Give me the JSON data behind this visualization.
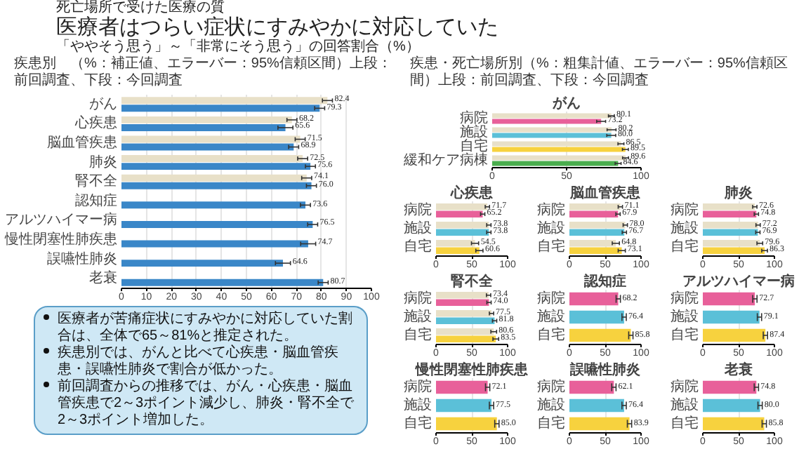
{
  "chart_data": [
    {
      "type": "other",
      "annotations": [
        "死亡場所で受けた医療の質"
      ],
      "title": "医療者はつらい症状にすみやかに対応していた",
      "subtitle": "「ややそう思う」～「非常にそう思う」の回答割合（%）"
    },
    {
      "type": "bar",
      "orientation": "horizontal",
      "title": "疾患別　（%：補正値、エラーバー：95%信頼区間）上段：前回調査、下段：今回調査",
      "categories": [
        "がん",
        "心疾患",
        "脳血管疾患",
        "肺炎",
        "腎不全",
        "認知症",
        "アルツハイマー病",
        "慢性閉塞性肺疾患",
        "誤嚥性肺炎",
        "老衰"
      ],
      "series": [
        {
          "color": "#e8e0c8",
          "values": [
            82.4,
            68.2,
            71.5,
            72.5,
            74.1,
            null,
            null,
            null,
            null,
            null
          ],
          "value_labels": [
            "82.4",
            "68.2",
            "71.5",
            "72.5",
            "74.1",
            null,
            null,
            null,
            null,
            null
          ],
          "errors": [
            2,
            2,
            2,
            2,
            2,
            null,
            null,
            null,
            null,
            null
          ]
        },
        {
          "color": "#3a87c8",
          "values": [
            79.3,
            65.6,
            68.9,
            75.6,
            76.0,
            73.6,
            76.5,
            74.7,
            64.6,
            80.7
          ],
          "value_labels": [
            "79.3",
            "65.6",
            "68.9",
            "75.6",
            "76.0",
            "73.6",
            "76.5",
            "74.7",
            "64.6",
            "80.7"
          ],
          "errors": [
            2,
            3,
            2,
            2,
            2,
            2,
            2,
            3,
            3,
            2
          ]
        }
      ],
      "xlim": [
        0,
        100
      ],
      "xticks": [
        0,
        10,
        20,
        30,
        40,
        50,
        60,
        70,
        80,
        90,
        100
      ],
      "grid": "x",
      "data_labels": true
    },
    {
      "type": "other",
      "annotations": [
        "医療者が苦痛症状にすみやかに対応していた割合は、全体で65～81%と推定された。",
        "疾患別では、がんと比べて心疾患・脳血管疾患・誤嚥性肺炎で割合が低かった。",
        "前回調査からの推移では、がん・心疾患・脳血管疾患で2～3ポイント減少し、肺炎・腎不全で2～3ポイント増加した。"
      ]
    },
    {
      "type": "other",
      "title": "疾患・死亡場所別（%：粗集計値、エラーバー：95%信頼区間）上段：前回調査、下段：今回調査"
    },
    {
      "type": "bar",
      "orientation": "horizontal",
      "title": "がん",
      "categories": [
        "病院",
        "施設",
        "自宅",
        "緩和ケア病棟"
      ],
      "series": [
        {
          "color": "#e8e0c8",
          "values": [
            80.1,
            80.2,
            86.5,
            89.6
          ],
          "value_labels": [
            "80.1",
            "80.2",
            "86.5",
            "89.6"
          ],
          "errors": [
            2,
            3,
            2,
            2
          ]
        },
        {
          "colors": [
            "#e8609a",
            "#5bc0d8",
            "#f7d23e",
            "#4aae4e"
          ],
          "values": [
            73.2,
            80.0,
            89.5,
            84.6
          ],
          "value_labels": [
            "73.2",
            "80.0",
            "89.5",
            "84.6"
          ],
          "errors": [
            3,
            3,
            2,
            2
          ]
        }
      ],
      "xlim": [
        0,
        100
      ],
      "xticks": [
        0,
        50,
        100
      ],
      "grid": "x",
      "data_labels": true
    },
    {
      "type": "bar",
      "orientation": "horizontal",
      "title": "心疾患",
      "categories": [
        "病院",
        "施設",
        "自宅"
      ],
      "series": [
        {
          "color": "#e8e0c8",
          "values": [
            71.7,
            73.8,
            54.5
          ],
          "value_labels": [
            "71.7",
            "73.8",
            "54.5"
          ],
          "errors": [
            3,
            3,
            5
          ]
        },
        {
          "colors": [
            "#e8609a",
            "#5bc0d8",
            "#f7d23e"
          ],
          "values": [
            65.2,
            73.8,
            60.6
          ],
          "value_labels": [
            "65.2",
            "73.8",
            "60.6"
          ],
          "errors": [
            3,
            3,
            5
          ]
        }
      ],
      "xlim": [
        0,
        100
      ],
      "xticks": [
        0,
        50,
        100
      ],
      "grid": "x",
      "data_labels": true
    },
    {
      "type": "bar",
      "orientation": "horizontal",
      "title": "脳血管疾患",
      "categories": [
        "病院",
        "施設",
        "自宅"
      ],
      "series": [
        {
          "color": "#e8e0c8",
          "values": [
            71.1,
            78.0,
            64.8
          ],
          "value_labels": [
            "71.1",
            "78.0",
            "64.8"
          ],
          "errors": [
            3,
            3,
            5
          ]
        },
        {
          "colors": [
            "#e8609a",
            "#5bc0d8",
            "#f7d23e"
          ],
          "values": [
            67.9,
            76.7,
            73.1
          ],
          "value_labels": [
            "67.9",
            "76.7",
            "73.1"
          ],
          "errors": [
            3,
            3,
            5
          ]
        }
      ],
      "xlim": [
        0,
        100
      ],
      "xticks": [
        0,
        50,
        100
      ],
      "grid": "x",
      "data_labels": true
    },
    {
      "type": "bar",
      "orientation": "horizontal",
      "title": "肺炎",
      "categories": [
        "病院",
        "施設",
        "自宅"
      ],
      "series": [
        {
          "color": "#e8e0c8",
          "values": [
            72.6,
            77.2,
            79.6
          ],
          "value_labels": [
            "72.6",
            "77.2",
            "79.6"
          ],
          "errors": [
            3,
            3,
            4
          ]
        },
        {
          "colors": [
            "#e8609a",
            "#5bc0d8",
            "#f7d23e"
          ],
          "values": [
            74.8,
            76.9,
            86.3
          ],
          "value_labels": [
            "74.8",
            "76.9",
            "86.3"
          ],
          "errors": [
            3,
            3,
            4
          ]
        }
      ],
      "xlim": [
        0,
        100
      ],
      "xticks": [
        0,
        50,
        100
      ],
      "grid": "x",
      "data_labels": true
    },
    {
      "type": "bar",
      "orientation": "horizontal",
      "title": "腎不全",
      "categories": [
        "病院",
        "施設",
        "自宅"
      ],
      "series": [
        {
          "color": "#e8e0c8",
          "values": [
            73.4,
            77.5,
            80.6
          ],
          "value_labels": [
            "73.4",
            "77.5",
            "80.6"
          ],
          "errors": [
            3,
            3,
            4
          ]
        },
        {
          "colors": [
            "#e8609a",
            "#5bc0d8",
            "#f7d23e"
          ],
          "values": [
            74.0,
            81.8,
            83.5
          ],
          "value_labels": [
            "74.0",
            "81.8",
            "83.5"
          ],
          "errors": [
            3,
            3,
            4
          ]
        }
      ],
      "xlim": [
        0,
        100
      ],
      "xticks": [
        0,
        50,
        100
      ],
      "grid": "x",
      "data_labels": true
    },
    {
      "type": "bar",
      "orientation": "horizontal",
      "title": "認知症",
      "categories": [
        "病院",
        "施設",
        "自宅"
      ],
      "series": [
        {
          "colors": [
            "#e8609a",
            "#5bc0d8",
            "#f7d23e"
          ],
          "values": [
            68.2,
            76.4,
            85.8
          ],
          "value_labels": [
            "68.2",
            "76.4",
            "85.8"
          ],
          "errors": [
            3,
            3,
            3
          ]
        }
      ],
      "xlim": [
        0,
        100
      ],
      "xticks": [
        0,
        50,
        100
      ],
      "grid": "x",
      "data_labels": true
    },
    {
      "type": "bar",
      "orientation": "horizontal",
      "title": "アルツハイマー病",
      "categories": [
        "病院",
        "施設",
        "自宅"
      ],
      "series": [
        {
          "colors": [
            "#e8609a",
            "#5bc0d8",
            "#f7d23e"
          ],
          "values": [
            72.7,
            79.1,
            87.4
          ],
          "value_labels": [
            "72.7",
            "79.1",
            "87.4"
          ],
          "errors": [
            3,
            3,
            3
          ]
        }
      ],
      "xlim": [
        0,
        100
      ],
      "xticks": [
        0,
        50,
        100
      ],
      "grid": "x",
      "data_labels": true
    },
    {
      "type": "bar",
      "orientation": "horizontal",
      "title": "慢性閉塞性肺疾患",
      "categories": [
        "病院",
        "施設",
        "自宅"
      ],
      "series": [
        {
          "colors": [
            "#e8609a",
            "#5bc0d8",
            "#f7d23e"
          ],
          "values": [
            72.1,
            77.5,
            85.0
          ],
          "value_labels": [
            "72.1",
            "77.5",
            "85.0"
          ],
          "errors": [
            3,
            3,
            3
          ]
        }
      ],
      "xlim": [
        0,
        100
      ],
      "xticks": [
        0,
        50,
        100
      ],
      "grid": "x",
      "data_labels": true
    },
    {
      "type": "bar",
      "orientation": "horizontal",
      "title": "誤嚥性肺炎",
      "categories": [
        "病院",
        "施設",
        "自宅"
      ],
      "series": [
        {
          "colors": [
            "#e8609a",
            "#5bc0d8",
            "#f7d23e"
          ],
          "values": [
            62.1,
            76.4,
            83.9
          ],
          "value_labels": [
            "62.1",
            "76.4",
            "83.9"
          ],
          "errors": [
            3,
            3,
            3
          ]
        }
      ],
      "xlim": [
        0,
        100
      ],
      "xticks": [
        0,
        50,
        100
      ],
      "grid": "x",
      "data_labels": true
    },
    {
      "type": "bar",
      "orientation": "horizontal",
      "title": "老衰",
      "categories": [
        "病院",
        "施設",
        "自宅"
      ],
      "series": [
        {
          "colors": [
            "#e8609a",
            "#5bc0d8",
            "#f7d23e"
          ],
          "values": [
            74.8,
            80.0,
            85.8
          ],
          "value_labels": [
            "74.8",
            "80.0",
            "85.8"
          ],
          "errors": [
            3,
            3,
            3
          ]
        }
      ],
      "xlim": [
        0,
        100
      ],
      "xticks": [
        0,
        50,
        100
      ],
      "grid": "x",
      "data_labels": true
    }
  ]
}
